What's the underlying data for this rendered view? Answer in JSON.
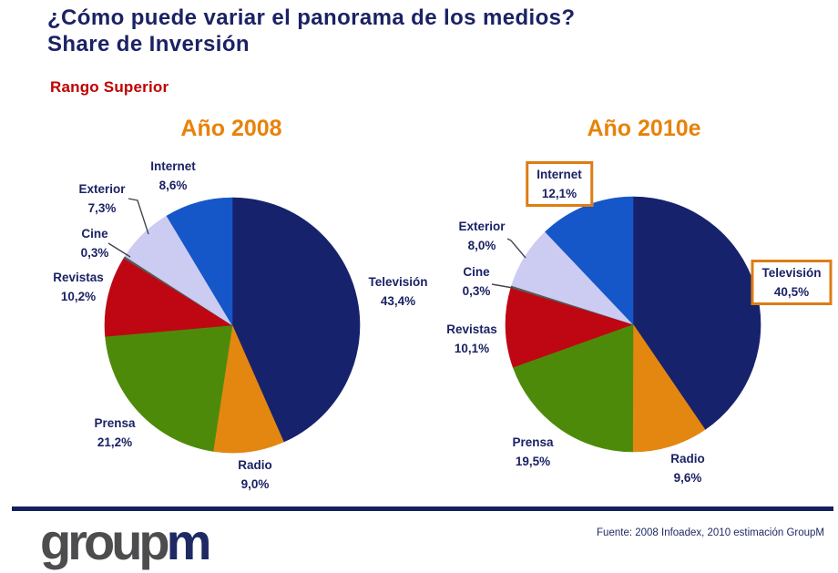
{
  "page": {
    "title_line1": "¿Cómo puede variar el panorama de los medios?",
    "title_line2": "Share de Inversión",
    "subtitle": "Rango Superior"
  },
  "footer": {
    "source": "Fuente: 2008 Infoadex, 2010 estimación GroupM",
    "logo": {
      "part1": "group",
      "part2": "m"
    }
  },
  "colors": {
    "title_navy": "#1B2264",
    "subtitle_red": "#C00000",
    "heading_orange": "#E8820A",
    "highlight_box_orange": "#DD7D14",
    "footer_rule_navy": "#13205E",
    "logo_gray": "#4D4D4F",
    "logo_navy": "#1F2A64"
  },
  "chart_data": [
    {
      "type": "pie",
      "title": "Año 2008",
      "start_angle_deg": 0,
      "direction": "clockwise",
      "slices": [
        {
          "label": "Televisión",
          "value": 43.4,
          "display": "43,4%",
          "color": "#17226D",
          "boxed": false
        },
        {
          "label": "Radio",
          "value": 9.0,
          "display": "9,0%",
          "color": "#E38710",
          "boxed": false
        },
        {
          "label": "Prensa",
          "value": 21.2,
          "display": "21,2%",
          "color": "#4E8A0A",
          "boxed": false
        },
        {
          "label": "Revistas",
          "value": 10.2,
          "display": "10,2%",
          "color": "#BE0712",
          "boxed": false
        },
        {
          "label": "Cine",
          "value": 0.3,
          "display": "0,3%",
          "color": "#595959",
          "boxed": false
        },
        {
          "label": "Exterior",
          "value": 7.3,
          "display": "7,3%",
          "color": "#CCCCF2",
          "boxed": false
        },
        {
          "label": "Internet",
          "value": 8.6,
          "display": "8,6%",
          "color": "#1557C9",
          "boxed": false
        }
      ]
    },
    {
      "type": "pie",
      "title": "Año 2010e",
      "start_angle_deg": 0,
      "direction": "clockwise",
      "slices": [
        {
          "label": "Televisión",
          "value": 40.5,
          "display": "40,5%",
          "color": "#17226D",
          "boxed": true
        },
        {
          "label": "Radio",
          "value": 9.6,
          "display": "9,6%",
          "color": "#E38710",
          "boxed": false
        },
        {
          "label": "Prensa",
          "value": 19.5,
          "display": "19,5%",
          "color": "#4E8A0A",
          "boxed": false
        },
        {
          "label": "Revistas",
          "value": 10.1,
          "display": "10,1%",
          "color": "#BE0712",
          "boxed": false
        },
        {
          "label": "Cine",
          "value": 0.3,
          "display": "0,3%",
          "color": "#595959",
          "boxed": false
        },
        {
          "label": "Exterior",
          "value": 8.0,
          "display": "8,0%",
          "color": "#CCCCF2",
          "boxed": false
        },
        {
          "label": "Internet",
          "value": 12.1,
          "display": "12,1%",
          "color": "#1557C9",
          "boxed": true
        }
      ]
    }
  ]
}
